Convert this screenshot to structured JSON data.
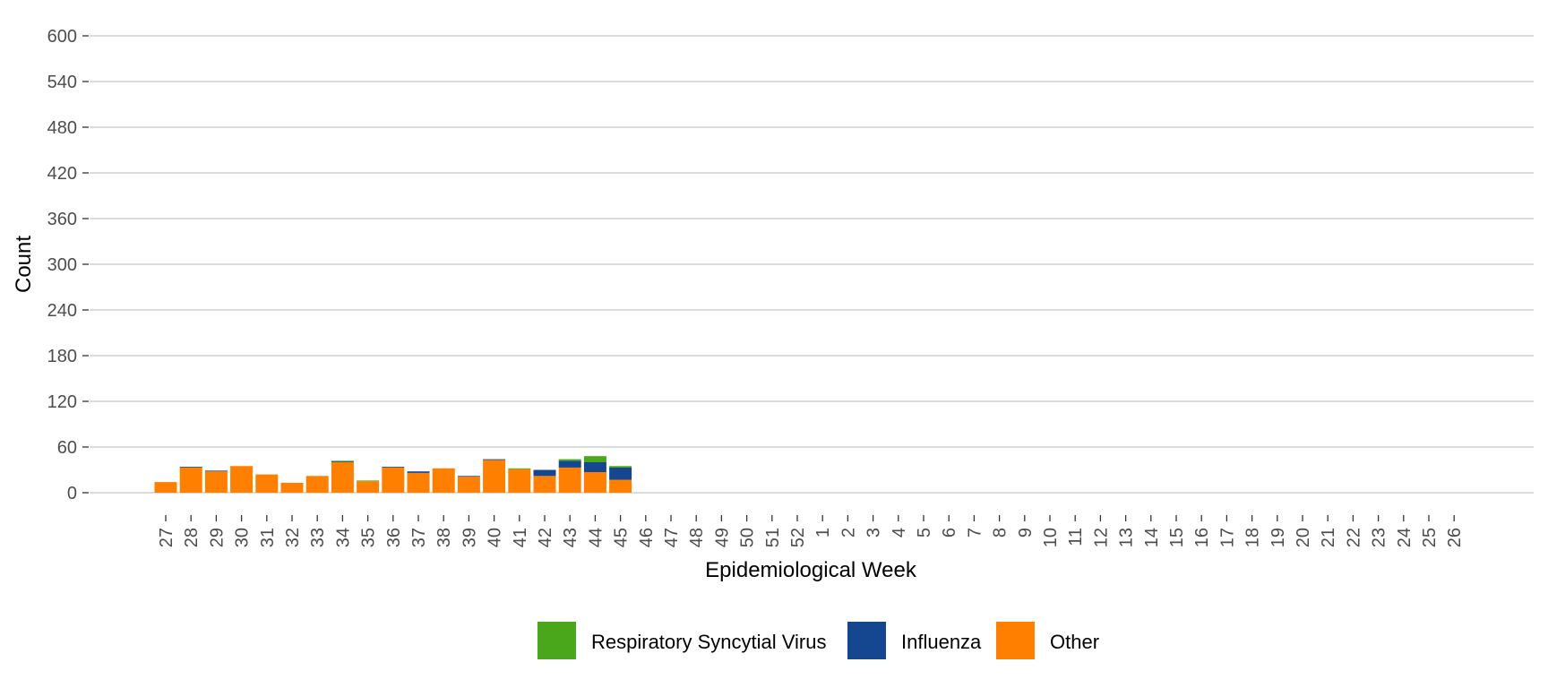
{
  "chart_data": {
    "type": "bar",
    "stacked": true,
    "title": "",
    "xlabel": "Epidemiological Week",
    "ylabel": "Count",
    "ylim": [
      0,
      600
    ],
    "yticks": [
      "0",
      "60",
      "120",
      "180",
      "240",
      "300",
      "360",
      "420",
      "480",
      "540",
      "600"
    ],
    "grid": "horizontal",
    "legend_position": "bottom",
    "categories": [
      "27",
      "28",
      "29",
      "30",
      "31",
      "32",
      "33",
      "34",
      "35",
      "36",
      "37",
      "38",
      "39",
      "40",
      "41",
      "42",
      "43",
      "44",
      "45",
      "46",
      "47",
      "48",
      "49",
      "50",
      "51",
      "52",
      "1",
      "2",
      "3",
      "4",
      "5",
      "6",
      "7",
      "8",
      "9",
      "10",
      "11",
      "12",
      "13",
      "14",
      "15",
      "16",
      "17",
      "18",
      "19",
      "20",
      "21",
      "22",
      "23",
      "24",
      "25",
      "26"
    ],
    "series": [
      {
        "name": "Other",
        "color": "#FF7F00",
        "values": [
          14,
          33,
          28,
          35,
          24,
          13,
          22,
          40,
          15,
          33,
          26,
          32,
          21,
          43,
          31,
          22,
          33,
          27,
          17,
          0,
          0,
          0,
          0,
          0,
          0,
          0,
          0,
          0,
          0,
          0,
          0,
          0,
          0,
          0,
          0,
          0,
          0,
          0,
          0,
          0,
          0,
          0,
          0,
          0,
          0,
          0,
          0,
          0,
          0,
          0,
          0,
          0
        ]
      },
      {
        "name": "Influenza",
        "color": "#14478F",
        "values": [
          0,
          1,
          1,
          0,
          0,
          0,
          0,
          1,
          0,
          1,
          2,
          0,
          1,
          1,
          0,
          8,
          9,
          13,
          16,
          0,
          0,
          0,
          0,
          0,
          0,
          0,
          0,
          0,
          0,
          0,
          0,
          0,
          0,
          0,
          0,
          0,
          0,
          0,
          0,
          0,
          0,
          0,
          0,
          0,
          0,
          0,
          0,
          0,
          0,
          0,
          0,
          0
        ]
      },
      {
        "name": "Respiratory Syncytial Virus",
        "color": "#4AA61B",
        "values": [
          0,
          0,
          0,
          0,
          0,
          0,
          0,
          1,
          1,
          0,
          0,
          0,
          0,
          0,
          1,
          0,
          2,
          8,
          2,
          0,
          0,
          0,
          0,
          0,
          0,
          0,
          0,
          0,
          0,
          0,
          0,
          0,
          0,
          0,
          0,
          0,
          0,
          0,
          0,
          0,
          0,
          0,
          0,
          0,
          0,
          0,
          0,
          0,
          0,
          0,
          0,
          0
        ]
      }
    ],
    "legend_order": [
      "Respiratory Syncytial Virus",
      "Influenza",
      "Other"
    ],
    "grid_color": "#C8C8C8",
    "baseline_color": "#C8C8C8"
  }
}
